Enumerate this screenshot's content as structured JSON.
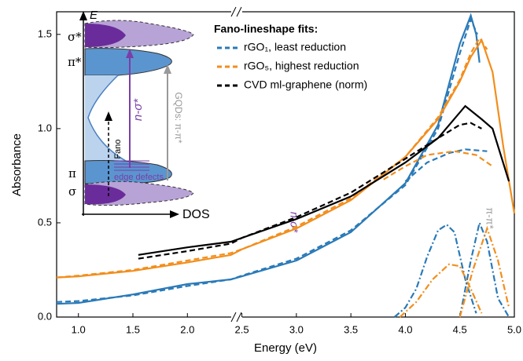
{
  "chart_data": {
    "type": "line",
    "x_label": "Energy (eV)",
    "y_label": "Absorbance",
    "xlim": [
      0.8,
      5.0
    ],
    "ylim": [
      0,
      1.62
    ],
    "xticks": [
      {
        "value": 1,
        "label": "1.0"
      },
      1.5,
      {
        "value": 2,
        "label": "2.0"
      },
      2.5,
      {
        "value": 3,
        "label": "3.0"
      },
      3.5,
      {
        "value": 4,
        "label": "4.0"
      },
      4.5,
      {
        "value": 5,
        "label": "5.0"
      }
    ],
    "yticks": [
      {
        "value": 0,
        "label": "0.0"
      },
      0.5,
      {
        "value": 1,
        "label": "1.0"
      },
      1.5
    ],
    "legend_title": "Fano-lineshape fits:",
    "legend": [
      {
        "label": "rGO₁, least reduction",
        "color": "#2a7ab8"
      },
      {
        "label": "rGO₅, highest reduction",
        "color": "#f28e1c"
      },
      {
        "label": "CVD ml-graphene (norm)",
        "color": "#000000"
      }
    ],
    "annotations": {
      "n_sigma": "n-σ*",
      "pi_pi": "π-π*"
    },
    "inset": {
      "energy_axis": "E",
      "dos_axis": "DOS",
      "sigma_star": "σ*",
      "pi_star": "π*",
      "pi": "π",
      "sigma": "σ",
      "n_sigma": "n-σ*",
      "fano": "Fano",
      "edge_defects": "edge defects",
      "gqds": "GQDs: π-π*"
    },
    "series": [
      {
        "color": "#2a7ab8",
        "style": "solid",
        "x": [
          0.8,
          1.0,
          1.5,
          2.0,
          2.4,
          2.5,
          3.0,
          3.5,
          4.0,
          4.3,
          4.5,
          4.6,
          4.65,
          4.68
        ],
        "values": [
          0.07,
          0.075,
          0.12,
          0.175,
          0.2,
          0.216,
          0.3,
          0.45,
          0.71,
          1.02,
          1.45,
          1.6,
          1.5,
          1.35
        ]
      },
      {
        "color": "#2a7ab8",
        "style": "dash",
        "x": [
          0.8,
          1.0,
          1.5,
          2.0,
          2.4,
          2.5,
          3.0,
          3.5,
          4.0,
          4.3,
          4.5,
          4.6,
          4.66
        ],
        "values": [
          0.08,
          0.085,
          0.115,
          0.165,
          0.2,
          0.22,
          0.31,
          0.46,
          0.7,
          1.0,
          1.4,
          1.58,
          1.5
        ]
      },
      {
        "color": "#f28e1c",
        "style": "solid",
        "x": [
          0.8,
          1.0,
          1.5,
          2.0,
          2.4,
          2.5,
          3.0,
          3.5,
          4.0,
          4.3,
          4.5,
          4.6,
          4.7,
          4.8,
          4.9,
          5.0
        ],
        "values": [
          0.21,
          0.216,
          0.245,
          0.29,
          0.33,
          0.36,
          0.47,
          0.62,
          0.85,
          1.05,
          1.25,
          1.38,
          1.47,
          1.3,
          0.9,
          0.55
        ]
      },
      {
        "color": "#f28e1c",
        "style": "dash",
        "x": [
          0.8,
          1.0,
          1.5,
          2.0,
          2.4,
          2.5,
          3.0,
          3.5,
          4.0,
          4.3,
          4.5,
          4.6,
          4.68,
          4.75
        ],
        "values": [
          0.21,
          0.22,
          0.25,
          0.3,
          0.34,
          0.36,
          0.48,
          0.63,
          0.85,
          1.06,
          1.26,
          1.4,
          1.48,
          1.42
        ]
      },
      {
        "color": "#000000",
        "style": "solid",
        "x": [
          1.55,
          2.0,
          2.4,
          2.5,
          3.0,
          3.5,
          4.0,
          4.3,
          4.55,
          4.7,
          4.8,
          4.95
        ],
        "values": [
          0.33,
          0.37,
          0.4,
          0.42,
          0.52,
          0.64,
          0.82,
          0.95,
          1.12,
          1.05,
          1.0,
          0.72
        ]
      },
      {
        "color": "#000000",
        "style": "dash",
        "x": [
          1.55,
          2.0,
          2.4,
          2.5,
          3.0,
          3.5,
          4.0,
          4.3,
          4.5,
          4.6,
          4.7
        ],
        "values": [
          0.31,
          0.35,
          0.39,
          0.42,
          0.53,
          0.66,
          0.84,
          0.95,
          1.02,
          1.03,
          1.0
        ]
      },
      {
        "color": "#2a7ab8",
        "style": "dash",
        "x": [
          4.0,
          4.2,
          4.4,
          4.55,
          4.75
        ],
        "values": [
          0.72,
          0.82,
          0.87,
          0.89,
          0.88
        ]
      },
      {
        "color": "#f28e1c",
        "style": "dash",
        "x": [
          3.8,
          4.0,
          4.2,
          4.45,
          4.65,
          4.8
        ],
        "values": [
          0.73,
          0.8,
          0.86,
          0.88,
          0.86,
          0.8
        ]
      },
      {
        "color": "#2a7ab8",
        "style": "dashdot",
        "x": [
          3.9,
          4.0,
          4.1,
          4.2,
          4.3,
          4.38,
          4.45,
          4.55,
          4.65
        ],
        "values": [
          0,
          0.05,
          0.15,
          0.32,
          0.46,
          0.49,
          0.45,
          0.2,
          0.02
        ]
      },
      {
        "color": "#2a7ab8",
        "style": "dashdot",
        "x": [
          4.5,
          4.6,
          4.68,
          4.75,
          4.85,
          4.95
        ],
        "values": [
          0,
          0.3,
          0.5,
          0.4,
          0.1,
          0
        ]
      },
      {
        "color": "#f28e1c",
        "style": "dashdot",
        "x": [
          3.95,
          4.1,
          4.25,
          4.4,
          4.5,
          4.6,
          4.7
        ],
        "values": [
          0,
          0.08,
          0.2,
          0.28,
          0.27,
          0.15,
          0.02
        ]
      },
      {
        "color": "#f28e1c",
        "style": "dashdot",
        "x": [
          4.5,
          4.62,
          4.75,
          4.85,
          4.95
        ],
        "values": [
          0,
          0.25,
          0.47,
          0.3,
          0.05
        ]
      }
    ]
  }
}
